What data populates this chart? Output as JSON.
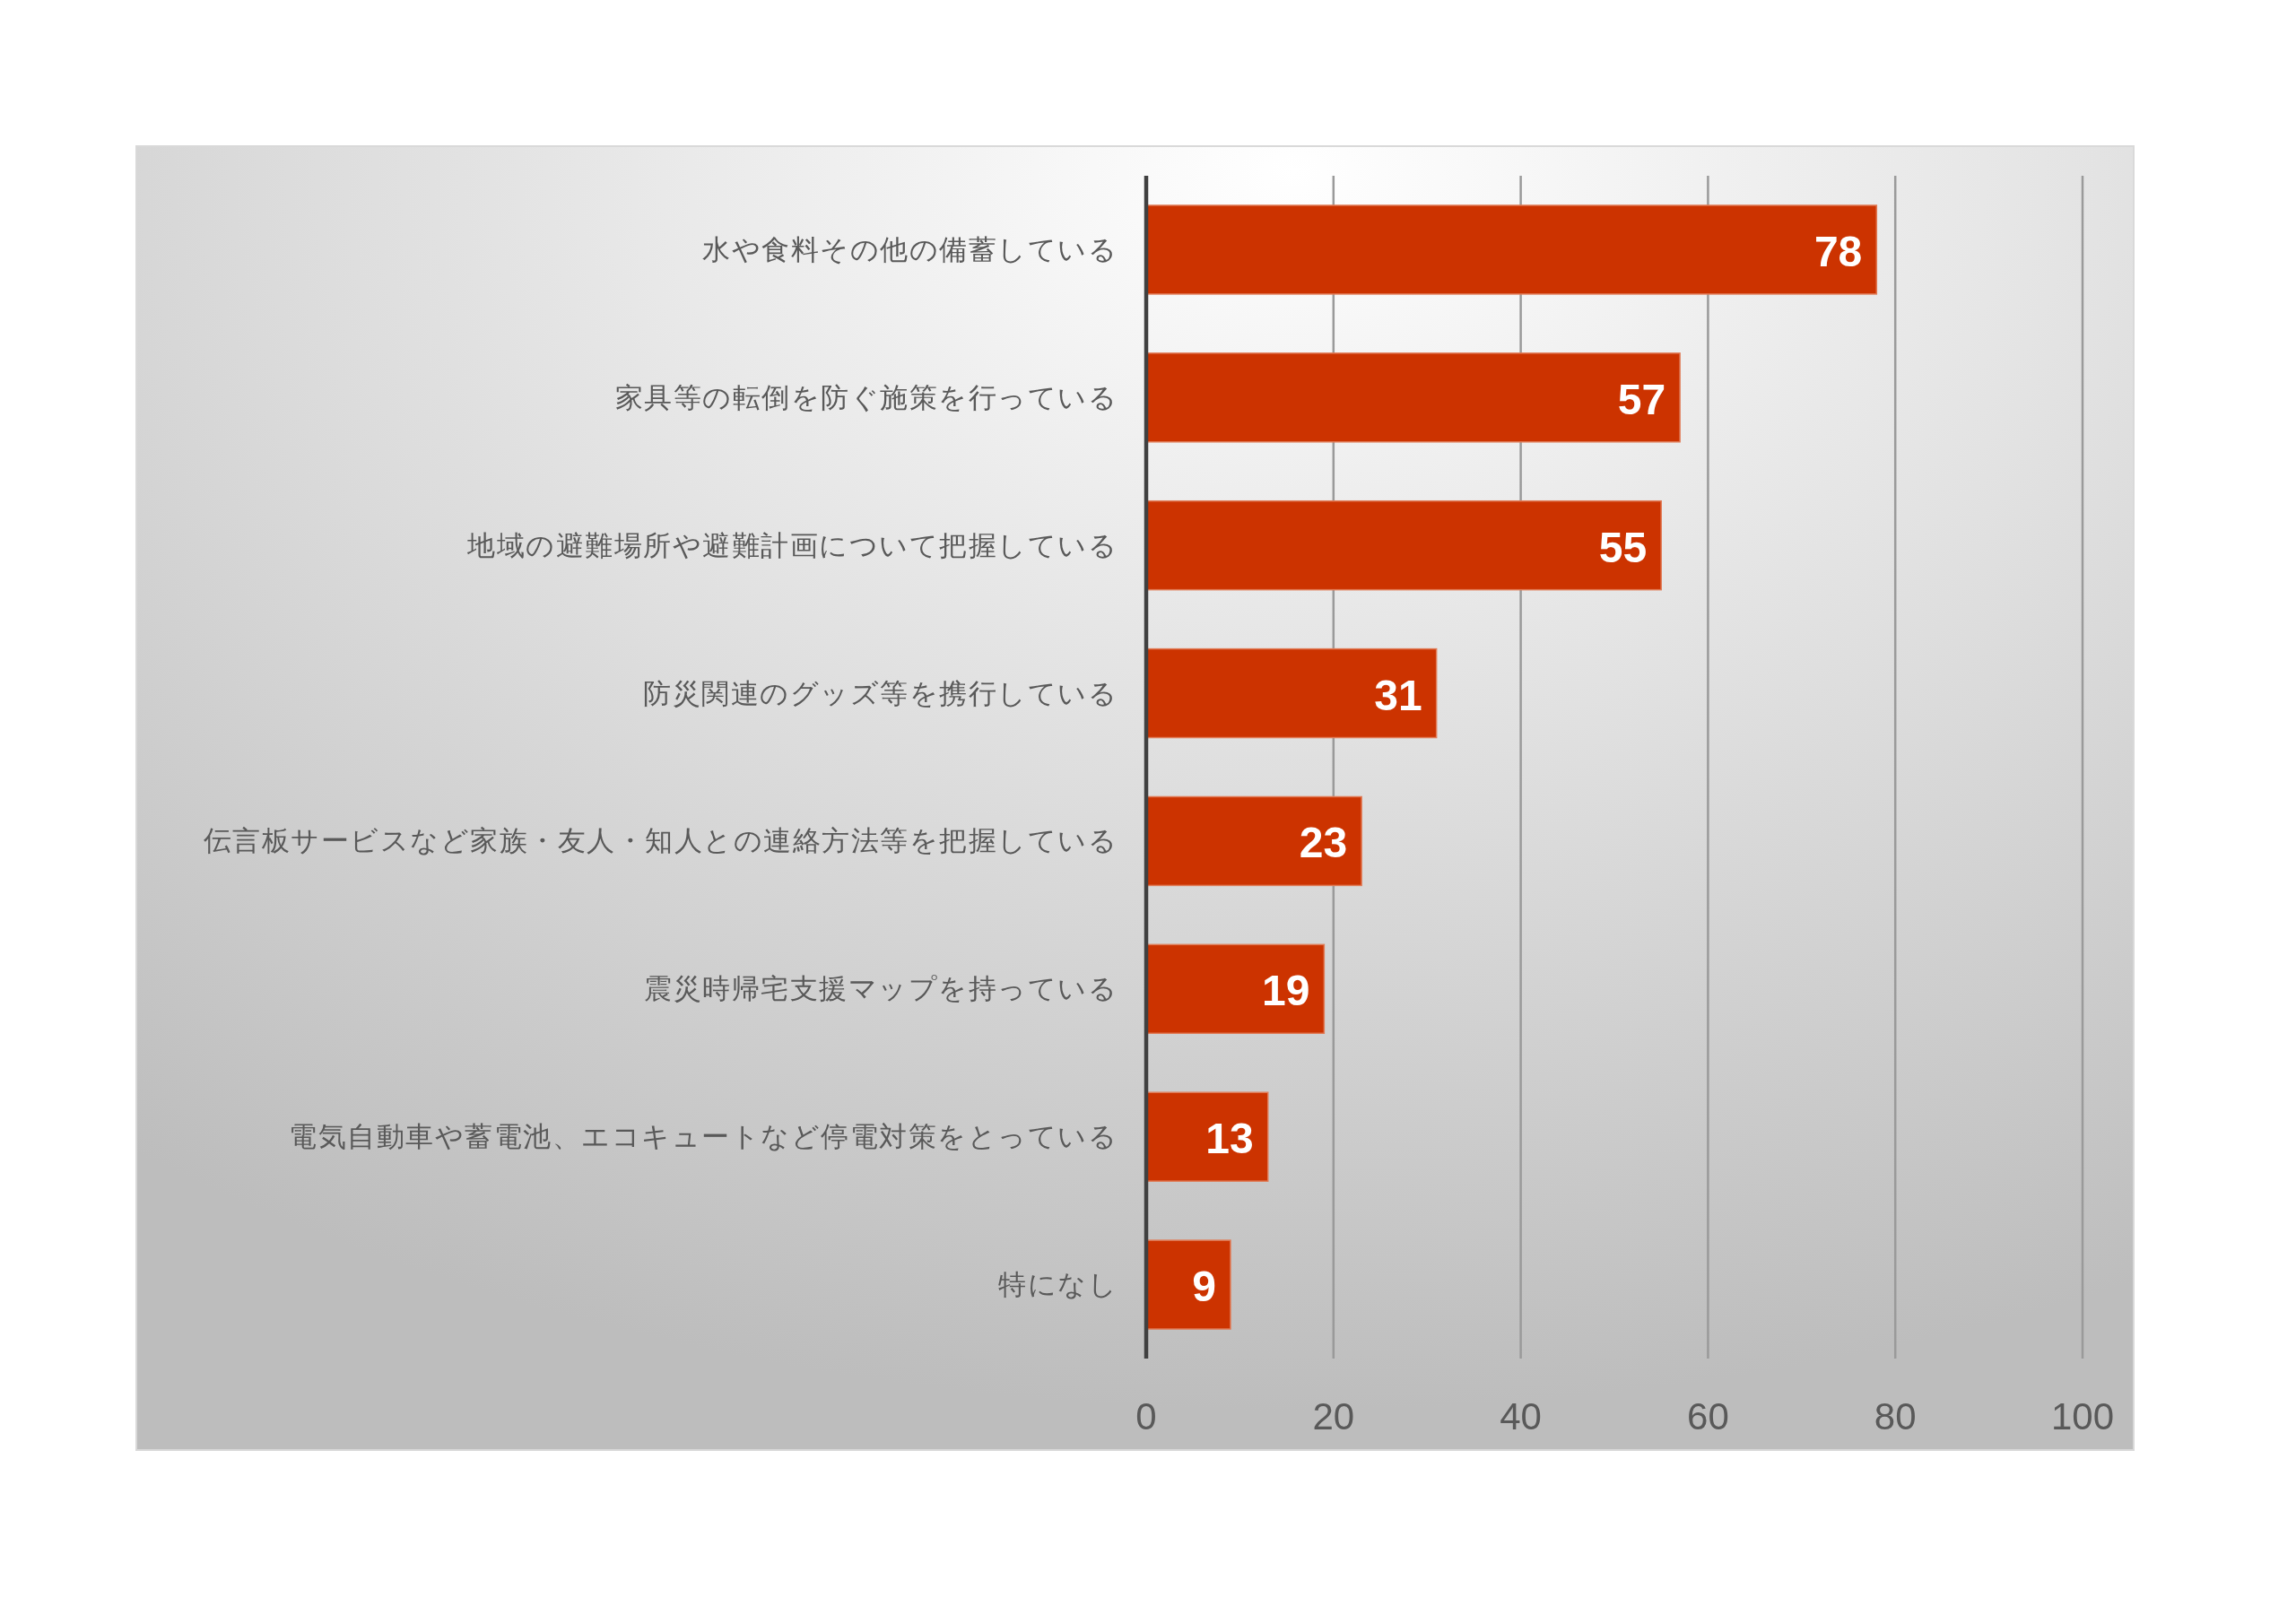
{
  "chart_data": {
    "type": "bar",
    "orientation": "horizontal",
    "categories": [
      "水や食料その他の備蓄している",
      "家具等の転倒を防ぐ施策を行っている",
      "地域の避難場所や避難計画について把握している",
      "防災関連のグッズ等を携行している",
      "伝言板サービスなど家族・友人・知人との連絡方法等を把握している",
      "震災時帰宅支援マップを持っている",
      "電気自動車や蓄電池、エコキュートなど停電対策をとっている",
      "特になし"
    ],
    "values": [
      78,
      57,
      55,
      31,
      23,
      19,
      13,
      9
    ],
    "color": "#cc3300",
    "xlim": [
      0,
      100
    ],
    "xticks": [
      0,
      20,
      40,
      60,
      80,
      100
    ],
    "grid": "x",
    "data_labels": true
  }
}
